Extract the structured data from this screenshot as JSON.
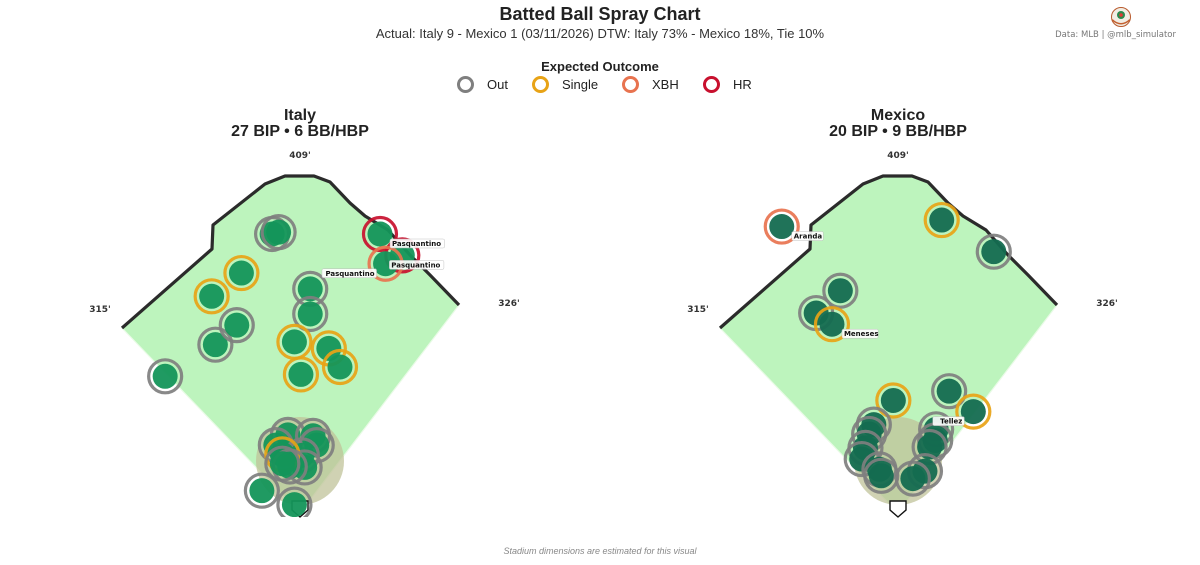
{
  "header": {
    "title": "Batted Ball Spray Chart",
    "subtitle": "Actual: Italy 9 - Mexico 1  (03/11/2026)    DTW: Italy 73% - Mexico 18%, Tie 10%",
    "credit": "Data: MLB  |  @mlb_simulator"
  },
  "legend": {
    "title": "Expected Outcome",
    "items": [
      {
        "label": "Out",
        "color": "#7f7f7f"
      },
      {
        "label": "Single",
        "color": "#e8a316"
      },
      {
        "label": "XBH",
        "color": "#e8734f"
      },
      {
        "label": "HR",
        "color": "#c8102e"
      }
    ]
  },
  "footer": {
    "note": "Stadium dimensions are estimated for this visual"
  },
  "colors": {
    "grass": "#bdf4bd",
    "infield_dirt": "#c0c39a",
    "wall": "#2b2b2b",
    "ball_italy": "#14955a",
    "ball_mexico": "#146b50"
  },
  "chart_data": [
    {
      "type": "scatter",
      "team": "Italy",
      "title": "Italy",
      "subtitle": "27 BIP  •  6 BB/HBP",
      "fences": {
        "left": "315'",
        "center": "409'",
        "right": "326'"
      },
      "points": [
        {
          "x": -30,
          "y": 300,
          "outcome": "Out"
        },
        {
          "x": -23,
          "y": 302,
          "outcome": "Out"
        },
        {
          "x": -95,
          "y": 233,
          "outcome": "Single"
        },
        {
          "x": -63,
          "y": 258,
          "outcome": "Single"
        },
        {
          "x": -145,
          "y": 147,
          "outcome": "Out"
        },
        {
          "x": -91,
          "y": 181,
          "outcome": "Out"
        },
        {
          "x": -68,
          "y": 202,
          "outcome": "Out"
        },
        {
          "x": 11,
          "y": 241,
          "outcome": "Out"
        },
        {
          "x": 11,
          "y": 214,
          "outcome": "Out"
        },
        {
          "x": 86,
          "y": 300,
          "outcome": "HR",
          "label": "Pasquantino"
        },
        {
          "x": 110,
          "y": 277,
          "outcome": "HR",
          "label": "Pasquantino"
        },
        {
          "x": 92,
          "y": 268,
          "outcome": "XBH",
          "label": "Pasquantino"
        },
        {
          "x": -6,
          "y": 184,
          "outcome": "Single"
        },
        {
          "x": 31,
          "y": 177,
          "outcome": "Single"
        },
        {
          "x": 43,
          "y": 157,
          "outcome": "Single"
        },
        {
          "x": 1,
          "y": 149,
          "outcome": "Single"
        },
        {
          "x": -13,
          "y": 84,
          "outcome": "Out"
        },
        {
          "x": 14,
          "y": 83,
          "outcome": "Out"
        },
        {
          "x": 18,
          "y": 73,
          "outcome": "Out"
        },
        {
          "x": -26,
          "y": 73,
          "outcome": "Out"
        },
        {
          "x": 2,
          "y": 62,
          "outcome": "Out"
        },
        {
          "x": 5,
          "y": 49,
          "outcome": "Out"
        },
        {
          "x": -19,
          "y": 63,
          "outcome": "Single"
        },
        {
          "x": -11,
          "y": 50,
          "outcome": "Out"
        },
        {
          "x": -19,
          "y": 53,
          "outcome": "Out"
        },
        {
          "x": -41,
          "y": 24,
          "outcome": "Out"
        },
        {
          "x": -6,
          "y": 9,
          "outcome": "Out"
        }
      ]
    },
    {
      "type": "scatter",
      "team": "Mexico",
      "title": "Mexico",
      "subtitle": "20 BIP  •  9 BB/HBP",
      "fences": {
        "left": "315'",
        "center": "409'",
        "right": "326'"
      },
      "points": [
        {
          "x": -125,
          "y": 308,
          "outcome": "XBH",
          "label": "Aranda"
        },
        {
          "x": 47,
          "y": 315,
          "outcome": "Single"
        },
        {
          "x": 103,
          "y": 281,
          "outcome": "Out"
        },
        {
          "x": -62,
          "y": 239,
          "outcome": "Out"
        },
        {
          "x": -88,
          "y": 215,
          "outcome": "Out"
        },
        {
          "x": -71,
          "y": 203,
          "outcome": "Single",
          "label": "Meneses"
        },
        {
          "x": 55,
          "y": 131,
          "outcome": "Out"
        },
        {
          "x": -5,
          "y": 121,
          "outcome": "Single"
        },
        {
          "x": 81,
          "y": 109,
          "outcome": "Single",
          "label": "Tellez"
        },
        {
          "x": -26,
          "y": 95,
          "outcome": "Out"
        },
        {
          "x": -31,
          "y": 85,
          "outcome": "Out"
        },
        {
          "x": -35,
          "y": 70,
          "outcome": "Out"
        },
        {
          "x": -39,
          "y": 58,
          "outcome": "Out"
        },
        {
          "x": 41,
          "y": 90,
          "outcome": "Out"
        },
        {
          "x": 40,
          "y": 78,
          "outcome": "Out"
        },
        {
          "x": 34,
          "y": 71,
          "outcome": "Out"
        },
        {
          "x": -20,
          "y": 47,
          "outcome": "Out"
        },
        {
          "x": -18,
          "y": 40,
          "outcome": "Out"
        },
        {
          "x": 29,
          "y": 45,
          "outcome": "Out"
        },
        {
          "x": 16,
          "y": 37,
          "outcome": "Out"
        }
      ]
    }
  ]
}
